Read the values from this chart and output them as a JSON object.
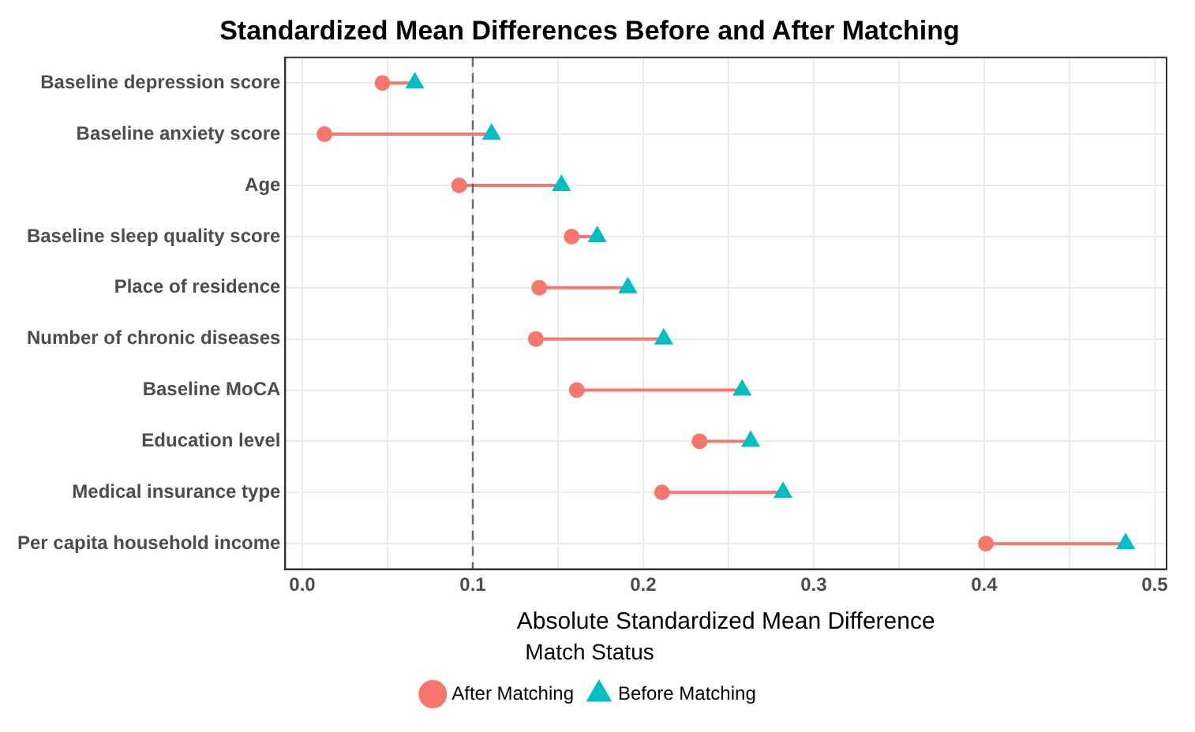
{
  "chart_data": {
    "type": "scatter",
    "orientation": "horizontal",
    "title": "Standardized Mean Differences Before and After Matching",
    "xlabel": "Absolute Standardized Mean Difference",
    "legend_title": "Match Status",
    "legend": "bottom",
    "grid": true,
    "categories": [
      "Baseline depression score",
      "Baseline anxiety score",
      "Age",
      "Baseline sleep quality score",
      "Place of residence",
      "Number of chronic diseases",
      "Baseline MoCA",
      "Education level",
      "Medical insurance type",
      "Per capita household income"
    ],
    "series": [
      {
        "name": "After Matching",
        "color": "#f8766d",
        "marker": "circle",
        "values": [
          0.047,
          0.013,
          0.092,
          0.158,
          0.139,
          0.137,
          0.161,
          0.233,
          0.211,
          0.401
        ]
      },
      {
        "name": "Before Matching",
        "color": "#00bfc4",
        "marker": "triangle",
        "values": [
          0.066,
          0.111,
          0.152,
          0.173,
          0.191,
          0.212,
          0.258,
          0.263,
          0.282,
          0.483
        ]
      }
    ],
    "xlim": [
      -0.01,
      0.507
    ],
    "xticks": [
      {
        "value": 0,
        "label": "0.0"
      },
      {
        "value": 0.05,
        "label": null
      },
      0.1,
      {
        "value": 0.15,
        "label": null
      },
      0.2,
      {
        "value": 0.25,
        "label": null
      },
      0.3,
      {
        "value": 0.35,
        "label": null
      },
      0.4,
      {
        "value": 0.45,
        "label": null
      },
      0.5
    ],
    "ref_lines": [
      {
        "axis": "x",
        "value": 0.1,
        "color": "#666666",
        "line_style": "dashed"
      }
    ]
  }
}
